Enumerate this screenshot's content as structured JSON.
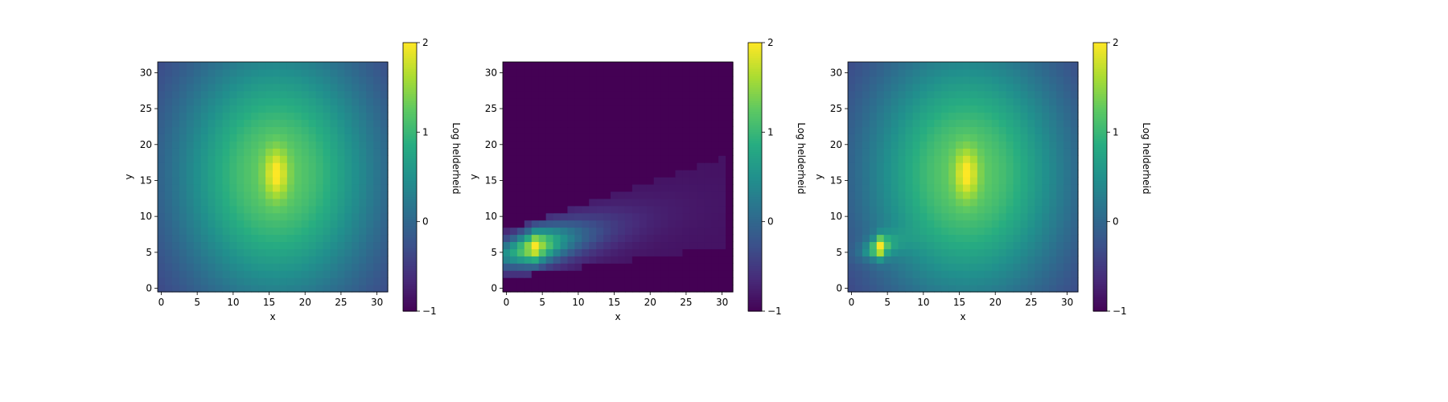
{
  "chart_data": [
    {
      "type": "heatmap",
      "title": "",
      "xlabel": "x",
      "ylabel": "y",
      "xlim": [
        -0.5,
        31.5
      ],
      "ylim": [
        -0.5,
        31.5
      ],
      "xticks": [
        "0",
        "5",
        "10",
        "15",
        "20",
        "25",
        "30"
      ],
      "yticks": [
        "0",
        "5",
        "10",
        "15",
        "20",
        "25",
        "30"
      ],
      "colormap": "viridis",
      "value_range": [
        -1,
        2
      ],
      "colorbar_label": "Log helderheid",
      "colorbar_ticks": [
        "2",
        "1",
        "0",
        "−1"
      ],
      "components": [
        {
          "kind": "gaussian",
          "cx": 16,
          "cy": 16,
          "sx": 10.5,
          "sy": 13.5,
          "peak": 1.3,
          "min": -0.6
        },
        {
          "kind": "core",
          "cx": 16,
          "cy": 16,
          "sx": 1.1,
          "sy": 2.4,
          "peak": 0.75
        }
      ]
    },
    {
      "type": "heatmap",
      "title": "",
      "xlabel": "x",
      "ylabel": "y",
      "xlim": [
        -0.5,
        31.5
      ],
      "ylim": [
        -0.5,
        31.5
      ],
      "xticks": [
        "0",
        "5",
        "10",
        "15",
        "20",
        "25",
        "30"
      ],
      "yticks": [
        "0",
        "5",
        "10",
        "15",
        "20",
        "25",
        "30"
      ],
      "colormap": "viridis",
      "value_range": [
        -1,
        2
      ],
      "colorbar_label": "Log helderheid",
      "colorbar_ticks": [
        "2",
        "1",
        "0",
        "−1"
      ],
      "background": -1,
      "components": [
        {
          "kind": "arc",
          "x0": 0,
          "x1": 30,
          "y0": 5.8,
          "slope": 0.24,
          "width0": 1.6,
          "width1": 3.0,
          "peak": 2.0,
          "peakx": 4,
          "decay": 5.5,
          "floor": -0.85
        }
      ]
    },
    {
      "type": "heatmap",
      "title": "",
      "xlabel": "x",
      "ylabel": "y",
      "xlim": [
        -0.5,
        31.5
      ],
      "ylim": [
        -0.5,
        31.5
      ],
      "xticks": [
        "0",
        "5",
        "10",
        "15",
        "20",
        "25",
        "30"
      ],
      "yticks": [
        "0",
        "5",
        "10",
        "15",
        "20",
        "25",
        "30"
      ],
      "colormap": "viridis",
      "value_range": [
        -1,
        2
      ],
      "colorbar_label": "Log helderheid",
      "colorbar_ticks": [
        "2",
        "1",
        "0",
        "−1"
      ],
      "components": [
        {
          "kind": "gaussian",
          "cx": 16,
          "cy": 16,
          "sx": 10.5,
          "sy": 13.5,
          "peak": 1.3,
          "min": -0.6
        },
        {
          "kind": "core",
          "cx": 16,
          "cy": 16,
          "sx": 1.1,
          "sy": 2.4,
          "peak": 0.75
        },
        {
          "kind": "arc",
          "x0": 0,
          "x1": 12,
          "y0": 5.8,
          "slope": 0.24,
          "width0": 1.4,
          "width1": 2.0,
          "peak": 2.0,
          "peakx": 4,
          "decay": 3.0,
          "floor": -1
        }
      ]
    }
  ]
}
